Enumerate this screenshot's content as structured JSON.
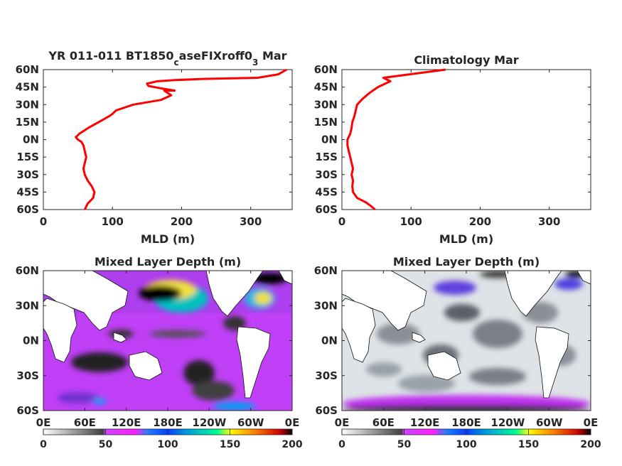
{
  "chart_data": [
    {
      "type": "line",
      "title_main": "YR 011-011 BT1850",
      "title_sub1": "c",
      "title_mid": "aseFIXroff0",
      "title_sub2": "3",
      "title_end": " Mar",
      "xlabel": "MLD (m)",
      "xlim": [
        0,
        360
      ],
      "ylim": [
        -60,
        60
      ],
      "xticks": [
        "0",
        "100",
        "200",
        "300"
      ],
      "xtick_values": [
        0,
        100,
        200,
        300
      ],
      "yticks": [
        "60N",
        "45N",
        "30N",
        "15N",
        "0N",
        "15S",
        "30S",
        "45S",
        "60S"
      ],
      "ytick_values": [
        60,
        45,
        30,
        15,
        0,
        -15,
        -30,
        -45,
        -60
      ],
      "line_color": "#ff0000",
      "series": [
        {
          "x": [
            60,
            64,
            72,
            74,
            70,
            64,
            60,
            58,
            60,
            62,
            60,
            58,
            55,
            50,
            47,
            52,
            65,
            80,
            95,
            100,
            105,
            130,
            170,
            185,
            175,
            190,
            170,
            152,
            150,
            165,
            190,
            230,
            310,
            340,
            352
          ],
          "y": [
            -60,
            -55,
            -50,
            -45,
            -40,
            -35,
            -30,
            -25,
            -20,
            -15,
            -10,
            -5,
            -2,
            0,
            2,
            5,
            10,
            15,
            20,
            22,
            25,
            30,
            34,
            38,
            42,
            42,
            44,
            46,
            48,
            50,
            51,
            52,
            53,
            56,
            60
          ]
        }
      ]
    },
    {
      "type": "line",
      "title": "Climatology Mar",
      "xlabel": "MLD (m)",
      "xlim": [
        0,
        360
      ],
      "ylim": [
        -60,
        60
      ],
      "xticks": [
        "0",
        "100",
        "200",
        "300"
      ],
      "xtick_values": [
        0,
        100,
        200,
        300
      ],
      "yticks": [
        "60N",
        "45N",
        "30N",
        "15N",
        "0N",
        "15S",
        "30S",
        "45S",
        "60S"
      ],
      "ytick_values": [
        60,
        45,
        30,
        15,
        0,
        -15,
        -30,
        -45,
        -60
      ],
      "line_color": "#ff0000",
      "series": [
        {
          "x": [
            48,
            42,
            35,
            22,
            16,
            15,
            16,
            14,
            16,
            14,
            12,
            10,
            8,
            8,
            12,
            14,
            15,
            18,
            20,
            22,
            30,
            40,
            52,
            70,
            60,
            150
          ],
          "y": [
            -60,
            -57,
            -54,
            -50,
            -45,
            -40,
            -35,
            -30,
            -25,
            -20,
            -15,
            -10,
            -5,
            0,
            5,
            10,
            15,
            20,
            25,
            30,
            35,
            40,
            45,
            50,
            53,
            60
          ]
        }
      ]
    },
    {
      "type": "heatmap",
      "title": "Mixed Layer Depth (m)",
      "xticks": [
        "0E",
        "60E",
        "120E",
        "180E",
        "120W",
        "60W",
        "0E"
      ],
      "xtick_values": [
        0,
        60,
        120,
        180,
        240,
        300,
        360
      ],
      "yticks": [
        "60N",
        "30N",
        "0N",
        "30S",
        "60S"
      ],
      "ytick_values": [
        60,
        30,
        0,
        -30,
        -60
      ],
      "colorbar_ticks": [
        "0",
        "50",
        "100",
        "150",
        "200"
      ],
      "colorbar_values": [
        0,
        50,
        100,
        150,
        200
      ],
      "colorbar_range": [
        0,
        200
      ]
    },
    {
      "type": "heatmap",
      "title": "Mixed Layer Depth (m)",
      "xticks": [
        "0E",
        "60E",
        "120E",
        "180E",
        "120W",
        "60W",
        "0E"
      ],
      "xtick_values": [
        0,
        60,
        120,
        180,
        240,
        300,
        360
      ],
      "yticks": [
        "60N",
        "30N",
        "0N",
        "30S",
        "60S"
      ],
      "ytick_values": [
        60,
        30,
        0,
        -30,
        -60
      ],
      "colorbar_ticks": [
        "0",
        "50",
        "100",
        "150",
        "200"
      ],
      "colorbar_values": [
        0,
        50,
        100,
        150,
        200
      ],
      "colorbar_range": [
        0,
        200
      ]
    }
  ]
}
